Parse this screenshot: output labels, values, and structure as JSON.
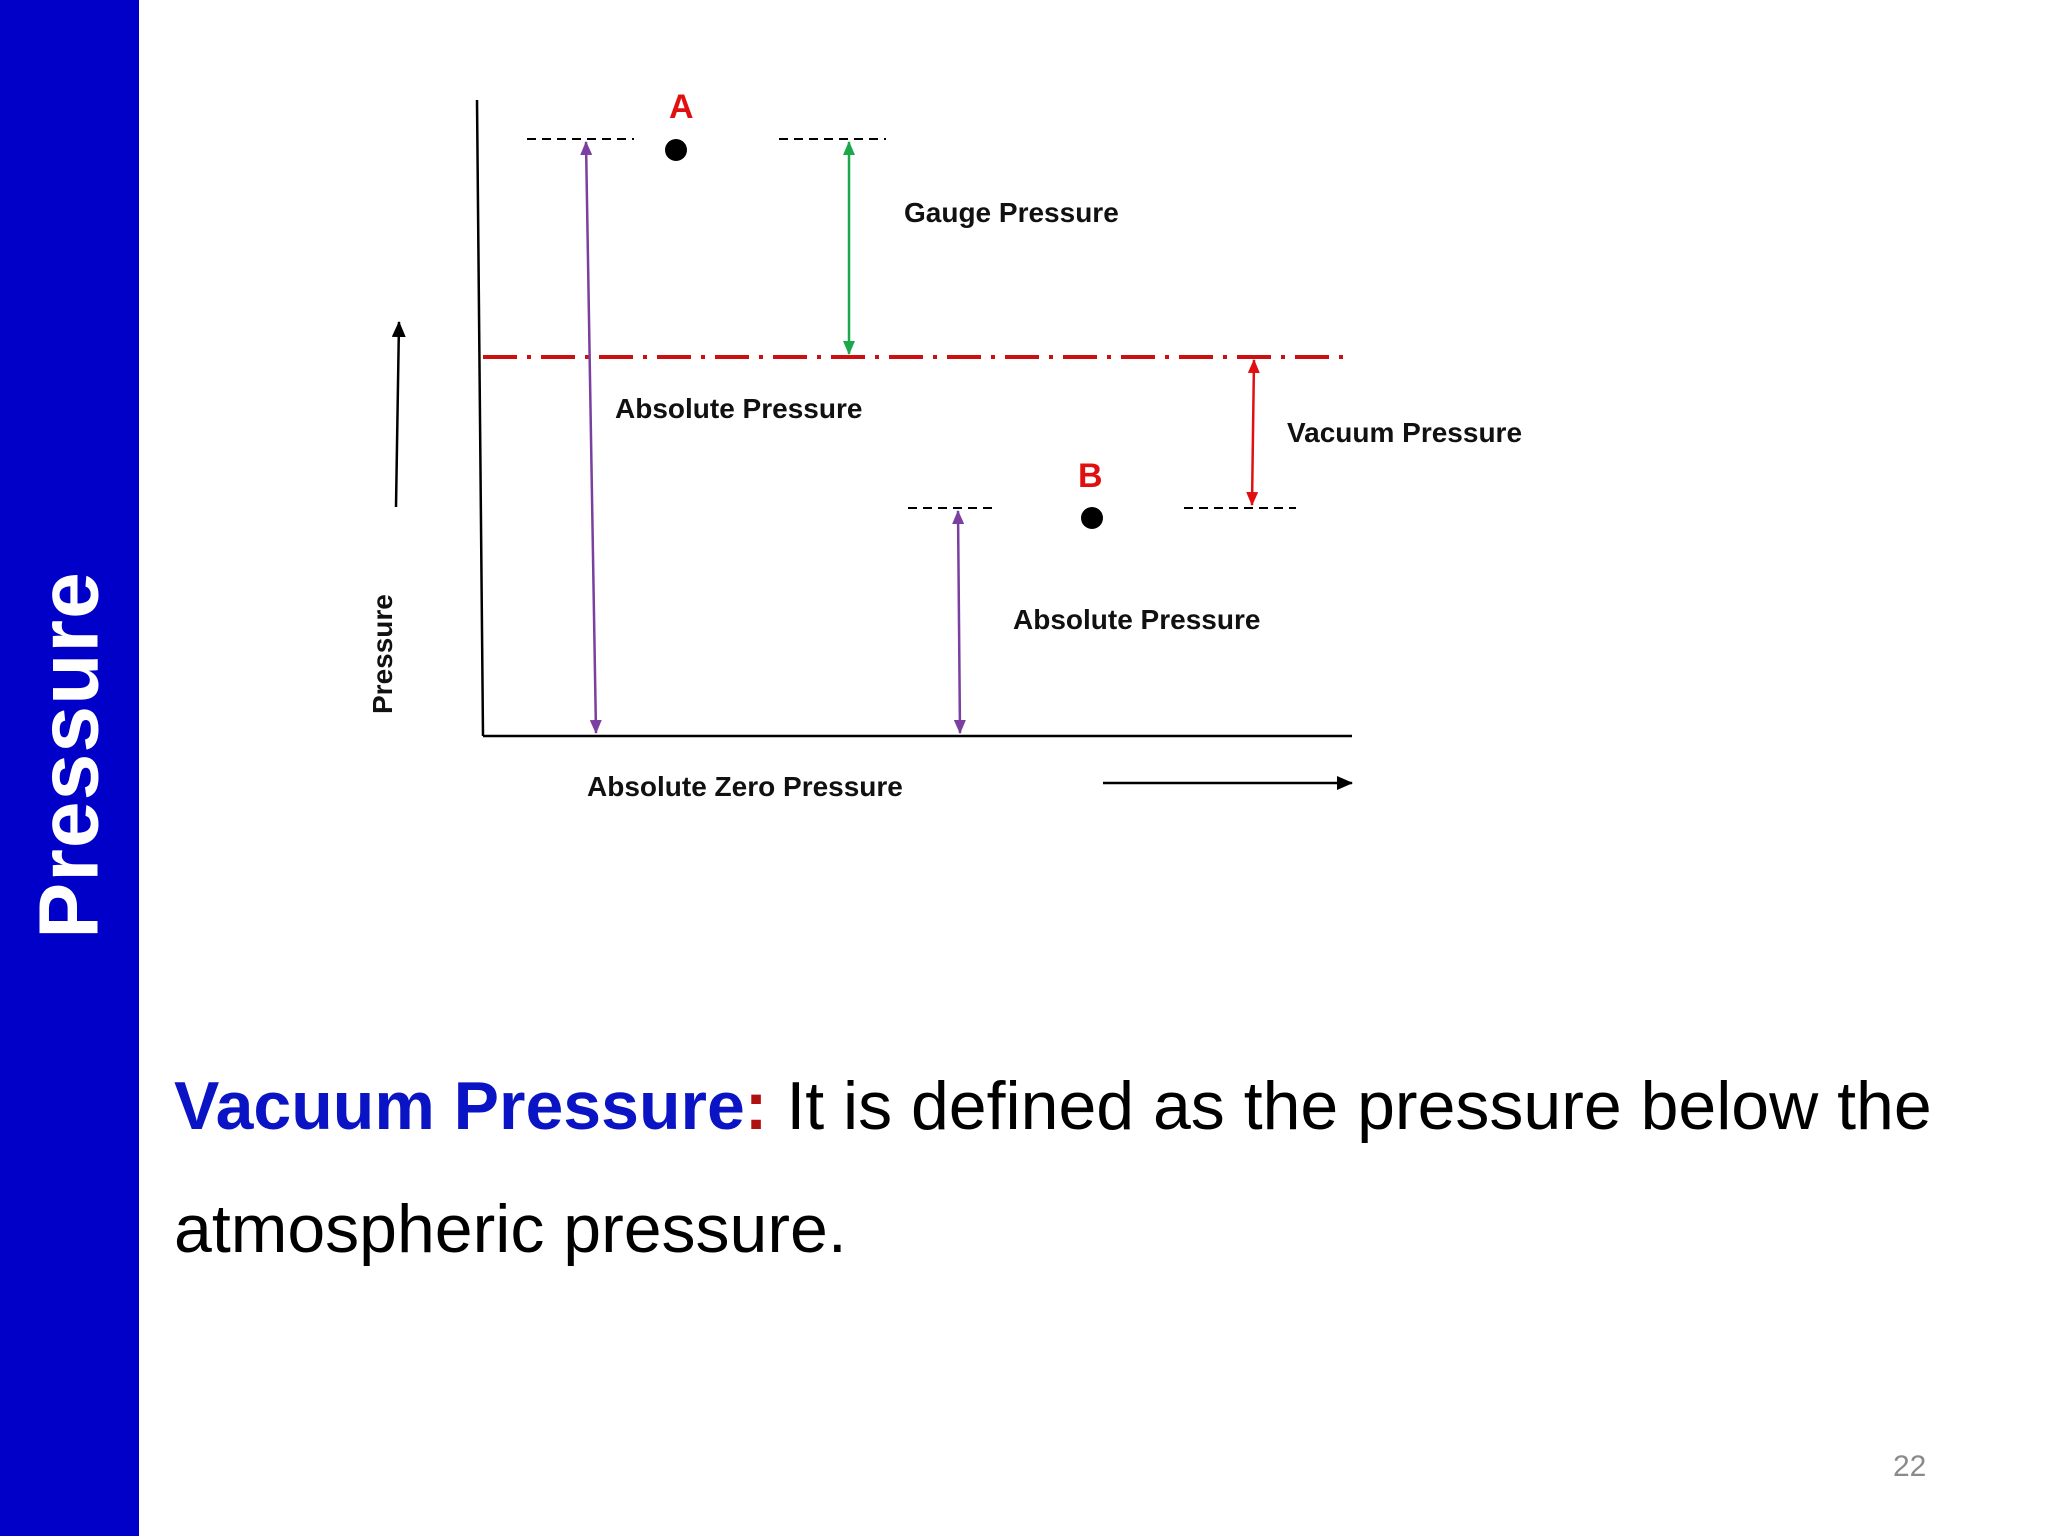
{
  "slide": {
    "sidebar_title": "Pressure",
    "page_number": "22"
  },
  "diagram": {
    "points": {
      "a": "A",
      "b": "B"
    },
    "labels": {
      "gauge_pressure": "Gauge Pressure",
      "absolute_pressure_a": "Absolute Pressure",
      "vacuum_pressure": "Vacuum Pressure",
      "absolute_pressure_b": "Absolute Pressure",
      "absolute_zero_pressure": "Absolute Zero Pressure",
      "y_axis": "Pressure"
    },
    "colors": {
      "absolute_arrow": "#7a3fa0",
      "gauge_arrow": "#1aa84a",
      "vacuum_arrow": "#e01010",
      "atmospheric_line": "#cc1010",
      "point_label": "#e01010",
      "sidebar": "#0000c8",
      "term": "#0a14c4"
    }
  },
  "definition": {
    "term": "Vacuum Pressure",
    "colon": ":",
    "text": " It is defined as the pressure below the atmospheric pressure."
  }
}
